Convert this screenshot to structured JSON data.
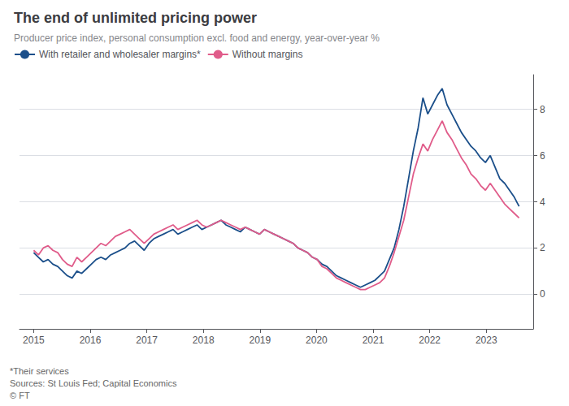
{
  "chart_data": {
    "type": "line",
    "title": "The end of unlimited pricing power",
    "subtitle": "Producer price index, personal consumption excl. food and energy, year-over-year %",
    "annotations": [
      "*Their services",
      "Sources: St Louis Fed; Capital Economics",
      "© FT"
    ],
    "x": [
      2015.0,
      2015.08495,
      2015.169901,
      2015.254851,
      2015.339802,
      2015.424752,
      2015.509703,
      2015.594653,
      2015.679604,
      2015.764554,
      2015.849505,
      2015.934455,
      2016.019406,
      2016.104356,
      2016.189307,
      2016.274257,
      2016.359208,
      2016.444158,
      2016.529109,
      2016.614059,
      2016.69901,
      2016.78396,
      2016.868911,
      2016.953861,
      2017.038812,
      2017.123762,
      2017.208713,
      2017.293663,
      2017.378614,
      2017.463564,
      2017.548515,
      2017.633465,
      2017.718416,
      2017.803366,
      2017.888317,
      2017.973267,
      2018.058218,
      2018.143168,
      2018.228119,
      2018.313069,
      2018.39802,
      2018.48297,
      2018.567921,
      2018.652871,
      2018.737822,
      2018.822772,
      2018.907723,
      2018.992673,
      2019.077624,
      2019.162574,
      2019.247525,
      2019.332475,
      2019.417426,
      2019.502376,
      2019.587327,
      2019.672277,
      2019.757228,
      2019.842178,
      2019.927129,
      2020.012079,
      2020.09703,
      2020.18198,
      2020.266931,
      2020.351881,
      2020.436832,
      2020.521782,
      2020.606733,
      2020.691683,
      2020.776634,
      2020.861584,
      2020.946535,
      2021.031485,
      2021.116436,
      2021.201386,
      2021.286337,
      2021.371287,
      2021.456238,
      2021.541188,
      2021.626139,
      2021.711089,
      2021.79604,
      2021.88099,
      2021.965941,
      2022.050891,
      2022.135842,
      2022.220792,
      2022.305743,
      2022.390693,
      2022.475644,
      2022.560594,
      2022.645545,
      2022.730495,
      2022.815446,
      2022.900396,
      2022.985347,
      2023.070297,
      2023.155248,
      2023.240198,
      2023.325149,
      2023.410099,
      2023.49505,
      2023.58
    ],
    "series": [
      {
        "name": "With retailer and wholesaler margins*",
        "color": "#1b4f8a",
        "values": [
          1.8,
          1.6,
          1.4,
          1.5,
          1.3,
          1.2,
          1.0,
          0.8,
          0.7,
          1.0,
          0.9,
          1.1,
          1.3,
          1.5,
          1.6,
          1.5,
          1.7,
          1.8,
          1.9,
          2.0,
          2.2,
          2.3,
          2.1,
          1.9,
          2.2,
          2.4,
          2.5,
          2.6,
          2.7,
          2.8,
          2.6,
          2.7,
          2.8,
          2.9,
          3.0,
          2.8,
          2.9,
          3.0,
          3.1,
          3.2,
          3.0,
          2.9,
          2.8,
          2.7,
          2.9,
          2.8,
          2.7,
          2.6,
          2.8,
          2.7,
          2.6,
          2.5,
          2.4,
          2.3,
          2.2,
          2.0,
          1.9,
          1.8,
          1.6,
          1.5,
          1.3,
          1.2,
          1.0,
          0.8,
          0.7,
          0.6,
          0.5,
          0.4,
          0.3,
          0.4,
          0.5,
          0.6,
          0.8,
          1.0,
          1.5,
          2.0,
          2.8,
          3.8,
          5.0,
          6.2,
          7.2,
          8.5,
          7.8,
          8.2,
          8.6,
          8.9,
          8.2,
          7.8,
          7.4,
          7.0,
          6.7,
          6.4,
          6.2,
          5.9,
          5.7,
          6.0,
          5.5,
          5.0,
          4.8,
          4.5,
          4.2,
          3.8
        ]
      },
      {
        "name": "Without margins",
        "color": "#e05c8a",
        "values": [
          1.9,
          1.7,
          2.0,
          2.1,
          1.9,
          1.8,
          1.5,
          1.3,
          1.2,
          1.6,
          1.4,
          1.6,
          1.8,
          2.0,
          2.2,
          2.1,
          2.3,
          2.5,
          2.6,
          2.7,
          2.8,
          2.6,
          2.4,
          2.2,
          2.4,
          2.6,
          2.7,
          2.8,
          2.9,
          3.0,
          2.8,
          2.9,
          3.0,
          3.1,
          3.2,
          3.0,
          2.9,
          3.0,
          3.1,
          3.2,
          3.1,
          3.0,
          2.9,
          2.8,
          2.9,
          2.8,
          2.7,
          2.6,
          2.8,
          2.7,
          2.6,
          2.5,
          2.4,
          2.3,
          2.2,
          2.0,
          1.9,
          1.8,
          1.6,
          1.5,
          1.2,
          1.1,
          0.9,
          0.7,
          0.6,
          0.5,
          0.4,
          0.3,
          0.2,
          0.2,
          0.3,
          0.4,
          0.5,
          0.7,
          1.2,
          1.8,
          2.5,
          3.2,
          4.2,
          5.2,
          5.9,
          6.5,
          6.2,
          6.7,
          7.1,
          7.5,
          7.0,
          6.7,
          6.3,
          5.9,
          5.6,
          5.2,
          5.0,
          4.7,
          4.5,
          4.8,
          4.5,
          4.2,
          3.9,
          3.7,
          3.5,
          3.3
        ]
      }
    ],
    "xlim": [
      2014.75,
      2023.83
    ],
    "xticks": [
      2015,
      2016,
      2017,
      2018,
      2019,
      2020,
      2021,
      2022,
      2023
    ],
    "ylim": [
      -1.5,
      9.5
    ],
    "yticks": [
      0,
      2,
      4,
      6,
      8
    ],
    "grid": true,
    "legend": "upper left"
  }
}
